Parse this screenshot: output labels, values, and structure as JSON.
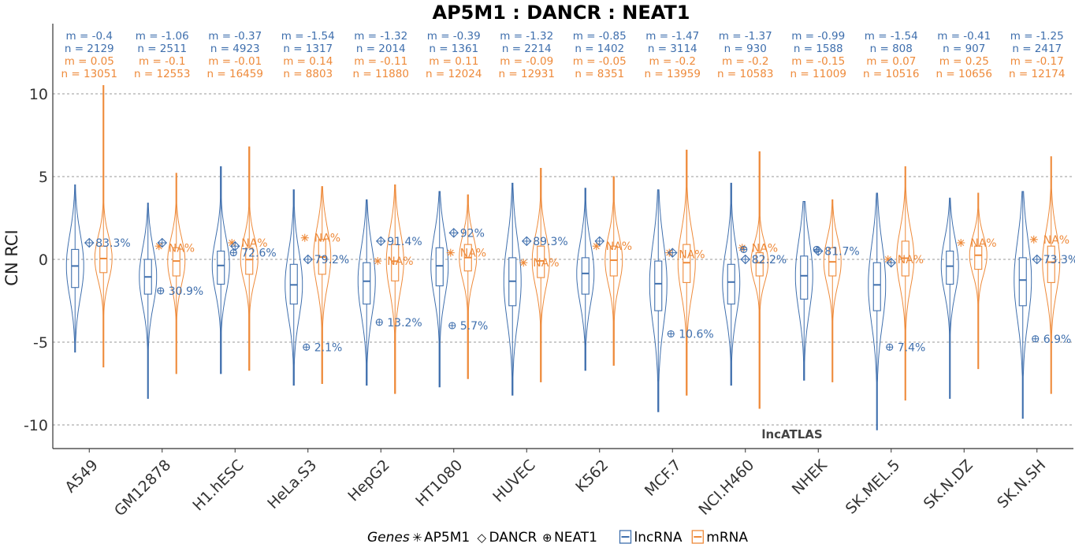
{
  "chart_data": {
    "type": "violin",
    "title": "AP5M1 : DANCR : NEAT1",
    "xlabel": "",
    "ylabel": "CN RCI",
    "ylim": [
      -11.5,
      14.2
    ],
    "yticks": [
      10,
      5,
      0,
      -5,
      -10
    ],
    "ytick_labels": [
      "10",
      "5",
      "0",
      "-5",
      "-10"
    ],
    "grid": "horizontal dashed",
    "watermark": "lncATLAS",
    "colors": {
      "lncRNA": "#3f6fad",
      "mRNA": "#ee8a3a"
    },
    "legend": {
      "position": "bottom",
      "genes_title": "Genes",
      "genes": [
        {
          "symbol": "✳",
          "label": "AP5M1"
        },
        {
          "symbol": "◇",
          "label": "DANCR"
        },
        {
          "symbol": "⊕",
          "label": "NEAT1"
        }
      ],
      "classes": [
        {
          "label": "lncRNA",
          "color": "#3f6fad"
        },
        {
          "label": "mRNA",
          "color": "#ee8a3a"
        }
      ]
    },
    "cells": [
      {
        "name": "A549",
        "lnc": {
          "m_label": "m = -0.4",
          "n_label": "n = 2129",
          "median": -0.4,
          "q1": -1.7,
          "q3": 0.6,
          "wlo": -5.6,
          "whi": 4.5
        },
        "mrna": {
          "m_label": "m = 0.05",
          "n_label": "n = 13051",
          "median": 0.05,
          "q1": -0.8,
          "q3": 0.8,
          "wlo": -6.5,
          "whi": 10.5
        },
        "genes": {
          "AP5M1": null,
          "DANCR": 1.0,
          "NEAT1": null
        },
        "pct": [
          {
            "text": "83.3%",
            "y": 1.0,
            "cls": "lnc"
          }
        ]
      },
      {
        "name": "GM12878",
        "lnc": {
          "m_label": "m = -1.06",
          "n_label": "n = 2511",
          "median": -1.06,
          "q1": -2.1,
          "q3": 0.0,
          "wlo": -8.4,
          "whi": 3.4
        },
        "mrna": {
          "m_label": "m = -0.1",
          "n_label": "n = 12553",
          "median": -0.1,
          "q1": -1.0,
          "q3": 0.7,
          "wlo": -6.9,
          "whi": 5.2
        },
        "genes": {
          "AP5M1": 0.8,
          "DANCR": 1.0,
          "NEAT1": -1.9
        },
        "pct": [
          {
            "text": "NA%",
            "y": 0.7,
            "cls": "mrna"
          },
          {
            "text": "30.9%",
            "y": -1.9,
            "cls": "lnc"
          }
        ]
      },
      {
        "name": "H1.hESC",
        "lnc": {
          "m_label": "m = -0.37",
          "n_label": "n = 4923",
          "median": -0.37,
          "q1": -1.5,
          "q3": 0.5,
          "wlo": -6.9,
          "whi": 5.6
        },
        "mrna": {
          "m_label": "m = -0.01",
          "n_label": "n = 16459",
          "median": -0.01,
          "q1": -0.9,
          "q3": 0.7,
          "wlo": -6.7,
          "whi": 6.8
        },
        "genes": {
          "AP5M1": 1.0,
          "DANCR": 0.8,
          "NEAT1": 0.4
        },
        "pct": [
          {
            "text": "NA%",
            "y": 1.0,
            "cls": "mrna"
          },
          {
            "text": "72.6%",
            "y": 0.4,
            "cls": "lnc"
          }
        ]
      },
      {
        "name": "HeLa.S3",
        "lnc": {
          "m_label": "m = -1.54",
          "n_label": "n = 1317",
          "median": -1.54,
          "q1": -2.7,
          "q3": -0.3,
          "wlo": -7.6,
          "whi": 4.2
        },
        "mrna": {
          "m_label": "m = 0.14",
          "n_label": "n = 8803",
          "median": 0.14,
          "q1": -0.9,
          "q3": 1.2,
          "wlo": -7.5,
          "whi": 4.4
        },
        "genes": {
          "AP5M1": 1.3,
          "DANCR": 0.0,
          "NEAT1": -5.3
        },
        "pct": [
          {
            "text": "NA%",
            "y": 1.3,
            "cls": "mrna"
          },
          {
            "text": "79.2%",
            "y": 0.0,
            "cls": "lnc"
          },
          {
            "text": "2.1%",
            "y": -5.3,
            "cls": "lnc"
          }
        ]
      },
      {
        "name": "HepG2",
        "lnc": {
          "m_label": "m = -1.32",
          "n_label": "n = 2014",
          "median": -1.32,
          "q1": -2.7,
          "q3": -0.2,
          "wlo": -7.6,
          "whi": 3.6
        },
        "mrna": {
          "m_label": "m = -0.11",
          "n_label": "n = 11880",
          "median": -0.11,
          "q1": -1.3,
          "q3": 0.9,
          "wlo": -8.1,
          "whi": 4.5
        },
        "genes": {
          "AP5M1": -0.1,
          "DANCR": 1.1,
          "NEAT1": -3.8
        },
        "pct": [
          {
            "text": "91.4%",
            "y": 1.1,
            "cls": "lnc"
          },
          {
            "text": "NA%",
            "y": -0.1,
            "cls": "mrna"
          },
          {
            "text": "13.2%",
            "y": -3.8,
            "cls": "lnc"
          }
        ]
      },
      {
        "name": "HT1080",
        "lnc": {
          "m_label": "m = -0.39",
          "n_label": "n = 1361",
          "median": -0.39,
          "q1": -1.6,
          "q3": 0.7,
          "wlo": -7.7,
          "whi": 4.1
        },
        "mrna": {
          "m_label": "m = 0.11",
          "n_label": "n = 12024",
          "median": 0.11,
          "q1": -0.7,
          "q3": 0.9,
          "wlo": -7.2,
          "whi": 3.9
        },
        "genes": {
          "AP5M1": 0.4,
          "DANCR": 1.6,
          "NEAT1": -4.0
        },
        "pct": [
          {
            "text": "92%",
            "y": 1.6,
            "cls": "lnc"
          },
          {
            "text": "NA%",
            "y": 0.4,
            "cls": "mrna"
          },
          {
            "text": "5.7%",
            "y": -4.0,
            "cls": "lnc"
          }
        ]
      },
      {
        "name": "HUVEC",
        "lnc": {
          "m_label": "m = -1.32",
          "n_label": "n = 2214",
          "median": -1.32,
          "q1": -2.8,
          "q3": 0.1,
          "wlo": -8.2,
          "whi": 4.6
        },
        "mrna": {
          "m_label": "m = -0.09",
          "n_label": "n = 12931",
          "median": -0.09,
          "q1": -1.1,
          "q3": 0.8,
          "wlo": -7.4,
          "whi": 5.5
        },
        "genes": {
          "AP5M1": -0.2,
          "DANCR": 1.1,
          "NEAT1": null
        },
        "pct": [
          {
            "text": "89.3%",
            "y": 1.1,
            "cls": "lnc"
          },
          {
            "text": "NA%",
            "y": -0.2,
            "cls": "mrna"
          }
        ]
      },
      {
        "name": "K562",
        "lnc": {
          "m_label": "m = -0.85",
          "n_label": "n = 1402",
          "median": -0.85,
          "q1": -2.1,
          "q3": 0.1,
          "wlo": -6.7,
          "whi": 4.3
        },
        "mrna": {
          "m_label": "m = -0.05",
          "n_label": "n = 8351",
          "median": -0.05,
          "q1": -1.0,
          "q3": 0.8,
          "wlo": -6.4,
          "whi": 5.0
        },
        "genes": {
          "AP5M1": 0.8,
          "DANCR": 1.1,
          "NEAT1": null
        },
        "pct": [
          {
            "text": "NA%",
            "y": 0.8,
            "cls": "mrna"
          }
        ]
      },
      {
        "name": "MCF.7",
        "lnc": {
          "m_label": "m = -1.47",
          "n_label": "n = 3114",
          "median": -1.47,
          "q1": -3.1,
          "q3": -0.1,
          "wlo": -9.2,
          "whi": 4.2
        },
        "mrna": {
          "m_label": "m = -0.2",
          "n_label": "n = 13959",
          "median": -0.2,
          "q1": -1.4,
          "q3": 0.9,
          "wlo": -8.2,
          "whi": 6.6
        },
        "genes": {
          "AP5M1": 0.4,
          "DANCR": 0.4,
          "NEAT1": -4.5
        },
        "pct": [
          {
            "text": "NA%",
            "y": 0.3,
            "cls": "mrna"
          },
          {
            "text": "10.6%",
            "y": -4.5,
            "cls": "lnc"
          }
        ]
      },
      {
        "name": "NCI.H460",
        "lnc": {
          "m_label": "m = -1.37",
          "n_label": "n = 930",
          "median": -1.37,
          "q1": -2.7,
          "q3": -0.3,
          "wlo": -7.6,
          "whi": 4.6
        },
        "mrna": {
          "m_label": "m = -0.2",
          "n_label": "n = 10583",
          "median": -0.2,
          "q1": -1.0,
          "q3": 0.4,
          "wlo": -9.0,
          "whi": 6.5
        },
        "genes": {
          "AP5M1": 0.7,
          "DANCR": 0.0,
          "NEAT1": 0.6
        },
        "pct": [
          {
            "text": "NA%",
            "y": 0.7,
            "cls": "mrna"
          },
          {
            "text": "82.2%",
            "y": 0.0,
            "cls": "lnc"
          }
        ]
      },
      {
        "name": "NHEK",
        "lnc": {
          "m_label": "m = -0.99",
          "n_label": "n = 1588",
          "median": -0.99,
          "q1": -2.4,
          "q3": 0.2,
          "wlo": -7.3,
          "whi": 3.5
        },
        "mrna": {
          "m_label": "m = -0.15",
          "n_label": "n = 11009",
          "median": -0.15,
          "q1": -1.0,
          "q3": 0.7,
          "wlo": -7.4,
          "whi": 3.6
        },
        "genes": {
          "AP5M1": null,
          "DANCR": 0.5,
          "NEAT1": 0.6
        },
        "pct": [
          {
            "text": "81.7%",
            "y": 0.5,
            "cls": "lnc"
          }
        ]
      },
      {
        "name": "SK.MEL.5",
        "lnc": {
          "m_label": "m = -1.54",
          "n_label": "n = 808",
          "median": -1.54,
          "q1": -3.1,
          "q3": -0.2,
          "wlo": -10.3,
          "whi": 4.0
        },
        "mrna": {
          "m_label": "m = 0.07",
          "n_label": "n = 10516",
          "median": 0.07,
          "q1": -1.0,
          "q3": 1.1,
          "wlo": -8.5,
          "whi": 5.6
        },
        "genes": {
          "AP5M1": 0.0,
          "DANCR": -0.2,
          "NEAT1": -5.3
        },
        "pct": [
          {
            "text": "NA%",
            "y": 0.0,
            "cls": "mrna"
          },
          {
            "text": "7.4%",
            "y": -5.3,
            "cls": "lnc"
          }
        ]
      },
      {
        "name": "SK.N.DZ",
        "lnc": {
          "m_label": "m = -0.41",
          "n_label": "n = 907",
          "median": -0.41,
          "q1": -1.5,
          "q3": 0.5,
          "wlo": -8.4,
          "whi": 3.7
        },
        "mrna": {
          "m_label": "m = 0.25",
          "n_label": "n = 10656",
          "median": 0.25,
          "q1": -0.6,
          "q3": 0.8,
          "wlo": -6.6,
          "whi": 4.0
        },
        "genes": {
          "AP5M1": 1.0,
          "DANCR": null,
          "NEAT1": null
        },
        "pct": [
          {
            "text": "NA%",
            "y": 1.0,
            "cls": "mrna"
          }
        ]
      },
      {
        "name": "SK.N.SH",
        "lnc": {
          "m_label": "m = -1.25",
          "n_label": "n = 2417",
          "median": -1.25,
          "q1": -2.8,
          "q3": 0.1,
          "wlo": -9.6,
          "whi": 4.1
        },
        "mrna": {
          "m_label": "m = -0.17",
          "n_label": "n = 12174",
          "median": -0.17,
          "q1": -1.4,
          "q3": 0.8,
          "wlo": -8.1,
          "whi": 6.2
        },
        "genes": {
          "AP5M1": 1.2,
          "DANCR": 0.0,
          "NEAT1": -4.8
        },
        "pct": [
          {
            "text": "NA%",
            "y": 1.2,
            "cls": "mrna"
          },
          {
            "text": "73.3%",
            "y": 0.0,
            "cls": "lnc"
          },
          {
            "text": "6.9%",
            "y": -4.8,
            "cls": "lnc"
          }
        ]
      }
    ]
  }
}
